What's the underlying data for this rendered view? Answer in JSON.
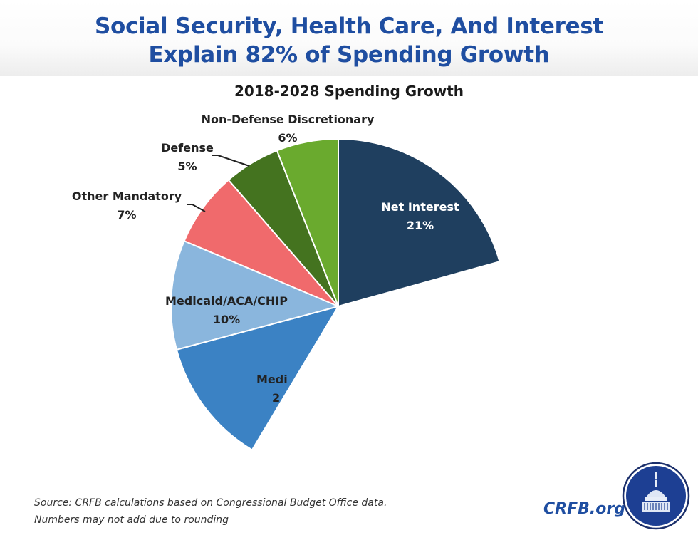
{
  "header": {
    "title_line1": "Social Security, Health Care, And Interest",
    "title_line2": "Explain 82% of Spending Growth"
  },
  "footer": {
    "source_line1": "Source: CRFB calculations based on Congressional Budget Office data.",
    "source_line2": "Numbers may not add due to rounding",
    "brand": "CRFB.org",
    "logo_icon": "capitol-dome-logo-icon"
  },
  "colors": {
    "title": "#1f4ea1",
    "net_interest": "#1f3f5f",
    "non_defense_discretionary": "#6aaa2e",
    "defense": "#44731f",
    "other_mandatory": "#f06a6c",
    "medicaid": "#8ab6dd",
    "medicare": "#3b82c4"
  },
  "chart_data": {
    "type": "pie",
    "title": "2018-2028 Spending Growth",
    "note": "Pie is partially drawn (animation frame); Social Security slice and part of Medicare not rendered",
    "slices": [
      {
        "key": "net_interest",
        "label": "Net Interest",
        "value_label": "21%",
        "value": 21,
        "color": "#1f3f5f",
        "label_inside": true
      },
      {
        "key": "medicare",
        "label": "Medi",
        "value_label": "2",
        "value": null,
        "color": "#3b82c4",
        "label_inside": true,
        "truncated": true
      },
      {
        "key": "medicaid",
        "label": "Medicaid/ACA/CHIP",
        "value_label": "10%",
        "value": 10,
        "color": "#8ab6dd",
        "label_inside": true
      },
      {
        "key": "other_mandatory",
        "label": "Other Mandatory",
        "value_label": "7%",
        "value": 7,
        "color": "#f06a6c",
        "label_inside": false
      },
      {
        "key": "defense",
        "label": "Defense",
        "value_label": "5%",
        "value": 5,
        "color": "#44731f",
        "label_inside": false
      },
      {
        "key": "non_defense_discretionary",
        "label": "Non-Defense Discretionary",
        "value_label": "6%",
        "value": 6,
        "color": "#6aaa2e",
        "label_inside": false
      }
    ]
  }
}
